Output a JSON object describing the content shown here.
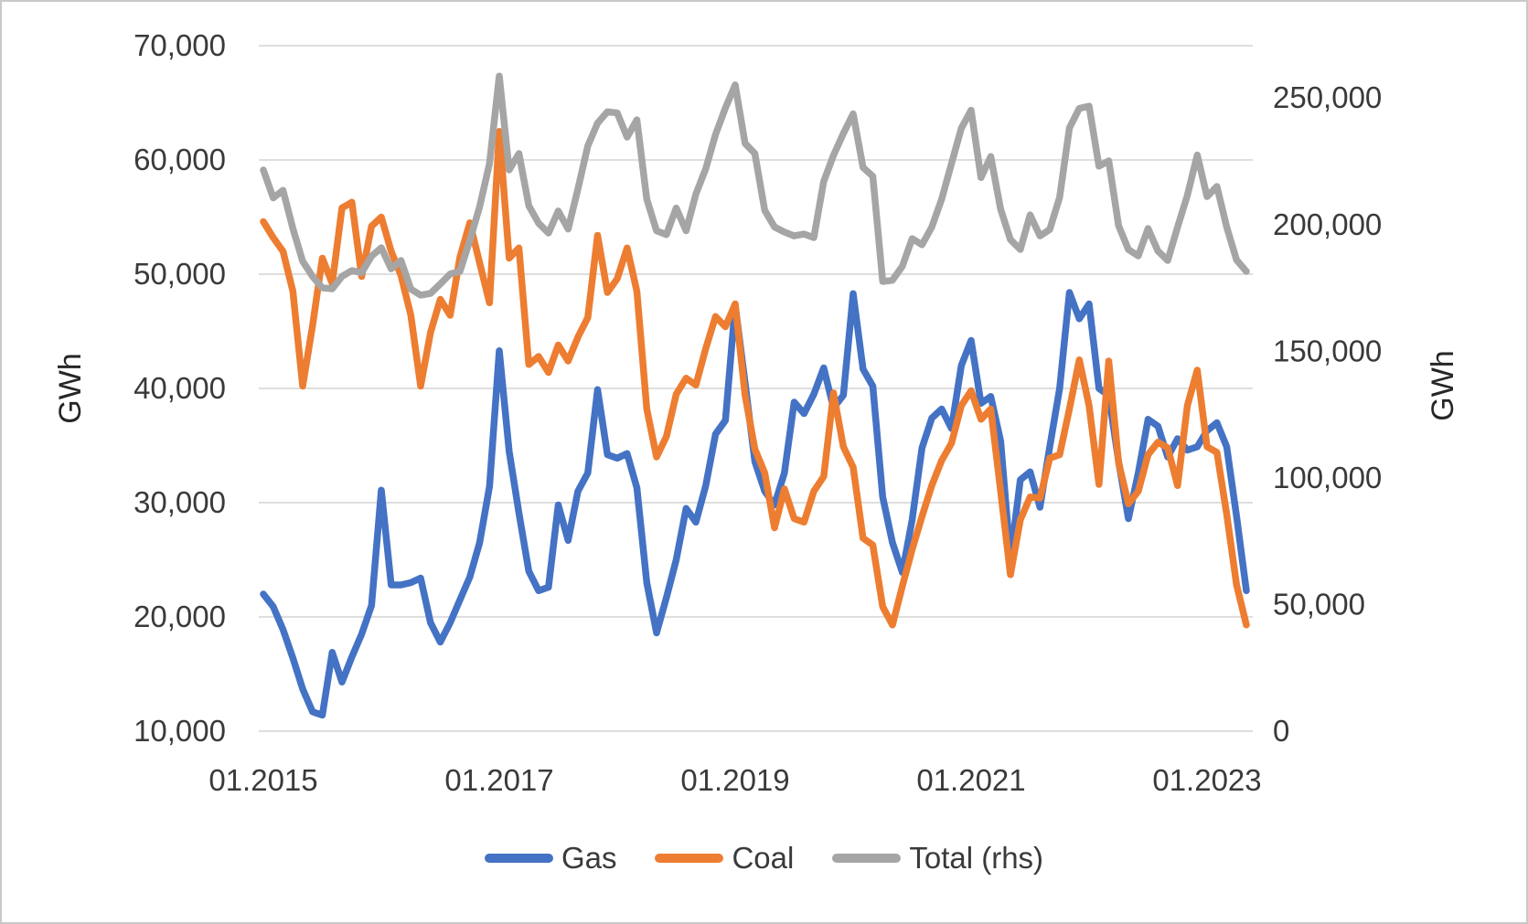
{
  "page": {
    "background_color": "#ffffff",
    "frame_border_color": "#c9c9c9",
    "gridline_color": "#d9d9d9",
    "axis_text_color": "#3a3a3a"
  },
  "chart_data": {
    "type": "line",
    "grid": "horizontal-only",
    "legend_position": "bottom-center",
    "x_axis": {
      "tick_labels": [
        "01.2015",
        "01.2017",
        "01.2019",
        "01.2021",
        "01.2023"
      ],
      "tick_month_indices": [
        0,
        24,
        48,
        72,
        96
      ],
      "start_month": "01.2015",
      "end_month": "05.2023",
      "months_count": 101
    },
    "left_axis": {
      "title": "GWh",
      "min": 10000,
      "max": 70000,
      "step": 10000,
      "tick_labels": [
        "10,000",
        "20,000",
        "30,000",
        "40,000",
        "50,000",
        "60,000",
        "70,000"
      ]
    },
    "right_axis": {
      "title": "GWh",
      "tick_values": [
        0,
        50000,
        100000,
        150000,
        200000,
        250000
      ],
      "tick_labels": [
        "0",
        "50,000",
        "100,000",
        "150,000",
        "200,000",
        "250,000"
      ]
    },
    "legend": [
      {
        "label": "Gas",
        "color": "#4472C4"
      },
      {
        "label": "Coal",
        "color": "#ED7D31"
      },
      {
        "label": "Total (rhs)",
        "color": "#A5A5A5"
      }
    ],
    "series": [
      {
        "name": "Gas",
        "axis": "left",
        "color": "#4472C4",
        "values": [
          22000,
          20900,
          18900,
          16400,
          13700,
          11700,
          11400,
          16900,
          14300,
          16500,
          18500,
          21000,
          31100,
          22800,
          22800,
          23000,
          23400,
          19500,
          17800,
          19500,
          21500,
          23500,
          26500,
          31400,
          43300,
          34500,
          29100,
          24000,
          22300,
          22600,
          29800,
          26700,
          31000,
          32600,
          39900,
          34200,
          33900,
          34300,
          31300,
          23000,
          18600,
          21700,
          25000,
          29500,
          28300,
          31500,
          36000,
          37200,
          47300,
          40500,
          33600,
          31000,
          29800,
          32600,
          38800,
          37800,
          39500,
          41800,
          38300,
          39400,
          48300,
          41700,
          40200,
          30500,
          26500,
          23900,
          28500,
          34800,
          37400,
          38200,
          36500,
          42000,
          44200,
          38700,
          39300,
          35400,
          25100,
          32000,
          32700,
          29600,
          34900,
          40000,
          48400,
          46100,
          47400,
          40000,
          39400,
          33600,
          28600,
          32600,
          37300,
          36700,
          34000,
          35600,
          34600,
          34900,
          36300,
          37000,
          34900,
          28800,
          22300
        ]
      },
      {
        "name": "Coal",
        "axis": "left",
        "color": "#ED7D31",
        "values": [
          54600,
          53200,
          52000,
          48500,
          40200,
          45500,
          51400,
          49200,
          55800,
          56300,
          49800,
          54200,
          55000,
          52000,
          49900,
          46400,
          40200,
          44900,
          47800,
          46400,
          51500,
          54500,
          51000,
          47500,
          62500,
          51400,
          52300,
          42100,
          42800,
          41400,
          43800,
          42400,
          44500,
          46200,
          53400,
          48400,
          49600,
          52300,
          48500,
          38200,
          34000,
          35800,
          39500,
          40900,
          40300,
          43500,
          46300,
          45400,
          47400,
          39400,
          34700,
          32600,
          27800,
          31200,
          28600,
          28300,
          31000,
          32300,
          39600,
          34900,
          33100,
          26900,
          26300,
          20900,
          19300,
          22700,
          25900,
          28800,
          31500,
          33700,
          35200,
          38500,
          39800,
          37300,
          38200,
          31000,
          23700,
          28500,
          30500,
          30400,
          33900,
          34200,
          38200,
          42500,
          38500,
          31600,
          42400,
          33500,
          29900,
          31000,
          34200,
          35300,
          34800,
          31500,
          38500,
          41600,
          34900,
          34400,
          29000,
          22800,
          19300
        ]
      },
      {
        "name": "Total (rhs)",
        "axis": "right",
        "color": "#A5A5A5",
        "values": [
          221500,
          210500,
          213500,
          198400,
          185500,
          179500,
          175000,
          174600,
          179500,
          181800,
          181000,
          187500,
          190800,
          182500,
          185800,
          174500,
          172100,
          172800,
          176500,
          180500,
          181500,
          193700,
          207000,
          224000,
          258600,
          221500,
          228000,
          207400,
          200500,
          196600,
          205300,
          198200,
          214000,
          231000,
          240000,
          244500,
          244000,
          234500,
          241300,
          210000,
          197500,
          196000,
          206500,
          197500,
          212000,
          222000,
          235500,
          246000,
          255100,
          232000,
          228000,
          205600,
          199000,
          197000,
          195500,
          196200,
          194800,
          217000,
          227300,
          235900,
          243700,
          222500,
          219000,
          177500,
          178000,
          183500,
          194400,
          192000,
          199000,
          210000,
          224000,
          238000,
          245100,
          218500,
          226800,
          206000,
          194000,
          190100,
          203800,
          195500,
          198000,
          210700,
          238100,
          245800,
          246700,
          223000,
          225100,
          199500,
          190100,
          187600,
          198400,
          189500,
          185800,
          199000,
          211500,
          227400,
          211000,
          215000,
          199000,
          186000,
          181500
        ]
      }
    ]
  }
}
